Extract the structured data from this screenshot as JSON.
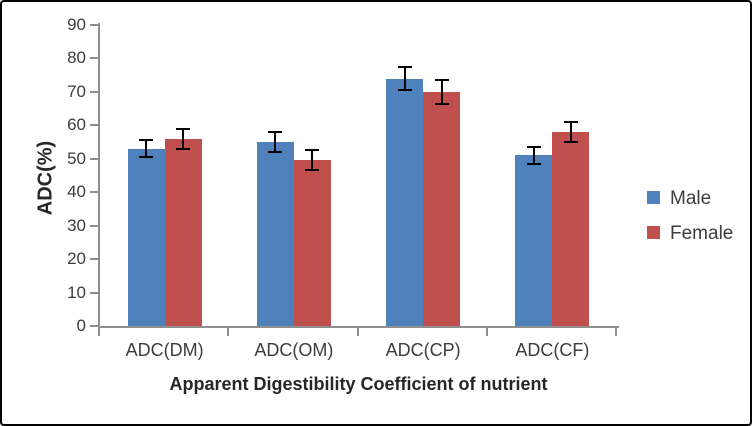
{
  "chart_data": {
    "type": "bar",
    "title": "",
    "categories": [
      "ADC(DM)",
      "ADC(OM)",
      "ADC(CP)",
      "ADC(CF)"
    ],
    "series": [
      {
        "name": "Male",
        "color": "#4F81BD",
        "values": [
          53,
          55,
          74,
          51
        ],
        "errors": [
          2.5,
          3,
          3.5,
          2.5
        ]
      },
      {
        "name": "Female",
        "color": "#C0504D",
        "values": [
          56,
          49.5,
          70,
          58
        ],
        "errors": [
          3,
          3,
          3.5,
          3
        ]
      }
    ],
    "xlabel": "Apparent Digestibility Coefficient of nutrient",
    "ylabel": "ADC(%)",
    "ylim": [
      0,
      90
    ],
    "ytick_step": 10,
    "grid": false,
    "error_bars": true,
    "legend_position": "right",
    "colors": {
      "axis_line": "#8F8F8F",
      "tick_label": "#3D3D3D",
      "title_text": "#262626",
      "error_bar": "#000000",
      "frame_border": "#000000",
      "background": "#FFFFFF"
    }
  }
}
